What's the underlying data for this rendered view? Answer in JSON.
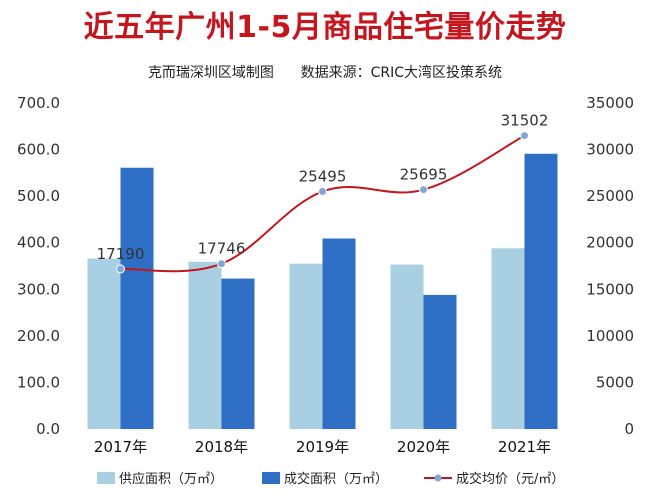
{
  "title": "近五年广州1-5月商品住宅量价走势",
  "subtitle_left": "克而瑞深圳区域制图",
  "subtitle_right": "数据来源：CRIC大湾区投策系统",
  "chart_data": {
    "type": "bar",
    "categories": [
      "2017年",
      "2018年",
      "2019年",
      "2020年",
      "2021年"
    ],
    "series": [
      {
        "name": "供应面积（万㎡）",
        "type": "bar",
        "axis": "left",
        "color": "#a8cfe2",
        "values": [
          366,
          359,
          355,
          353,
          388
        ]
      },
      {
        "name": "成交面积（万㎡）",
        "type": "bar",
        "axis": "left",
        "color": "#2e6fc5",
        "values": [
          561,
          323,
          409,
          288,
          591
        ]
      },
      {
        "name": "成交均价（元/㎡）",
        "type": "line",
        "axis": "right",
        "color": "#c4161c",
        "marker_color": "#7ea7d8",
        "values": [
          17190,
          17746,
          25495,
          25695,
          31502
        ]
      }
    ],
    "y_left": {
      "lim": [
        0,
        700
      ],
      "ticks": [
        "0.0",
        "100.0",
        "200.0",
        "300.0",
        "400.0",
        "500.0",
        "600.0",
        "700.0"
      ]
    },
    "y_right": {
      "lim": [
        0,
        35000
      ],
      "ticks": [
        "0",
        "5000",
        "10000",
        "15000",
        "20000",
        "25000",
        "30000",
        "35000"
      ]
    },
    "data_labels": [
      "17190",
      "17746",
      "25495",
      "25695",
      "31502"
    ],
    "grid": false,
    "legend_position": "bottom"
  }
}
